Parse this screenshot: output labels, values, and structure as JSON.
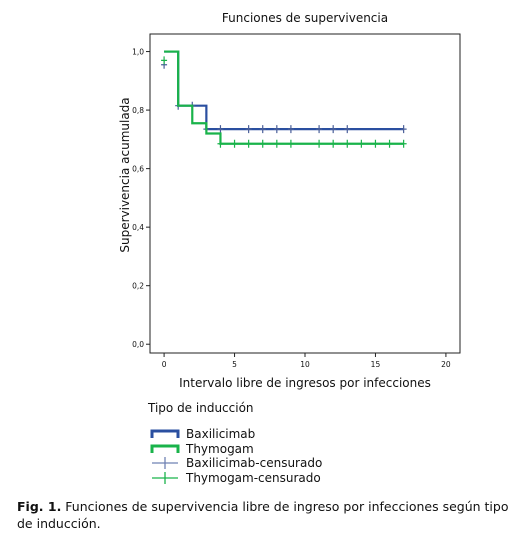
{
  "chart_data": {
    "type": "line",
    "title": "Funciones de supervivencia",
    "xlabel": "Intervalo libre de ingresos por infecciones",
    "ylabel": "Supervivencia acumulada",
    "xlim": [
      -1,
      21
    ],
    "ylim": [
      -0.03,
      1.06
    ],
    "xticks": [
      0,
      5,
      10,
      15,
      20
    ],
    "yticks": [
      0.0,
      0.2,
      0.4,
      0.6,
      0.8,
      1.0
    ],
    "xtick_labels": [
      "0",
      "5",
      "10",
      "15",
      "20"
    ],
    "ytick_labels": [
      "0,0",
      "0,2",
      "0,4",
      "0,6",
      "0,8",
      "1,0"
    ],
    "grid": false,
    "series": [
      {
        "name": "Baxilicimab",
        "color": "#2a4fa0",
        "steps": [
          [
            0,
            1.0
          ],
          [
            1,
            0.815
          ],
          [
            3,
            0.735
          ],
          [
            17,
            0.735
          ]
        ],
        "censored": [
          [
            0,
            0.955
          ],
          [
            1,
            0.815
          ],
          [
            2,
            0.815
          ],
          [
            3,
            0.735
          ],
          [
            4,
            0.735
          ],
          [
            6,
            0.735
          ],
          [
            7,
            0.735
          ],
          [
            8,
            0.735
          ],
          [
            9,
            0.735
          ],
          [
            11,
            0.735
          ],
          [
            12,
            0.735
          ],
          [
            13,
            0.735
          ],
          [
            17,
            0.735
          ]
        ]
      },
      {
        "name": "Thymogam",
        "color": "#19b34a",
        "steps": [
          [
            0,
            1.0
          ],
          [
            1,
            0.815
          ],
          [
            2,
            0.755
          ],
          [
            3,
            0.72
          ],
          [
            4,
            0.685
          ],
          [
            17,
            0.685
          ]
        ],
        "censored": [
          [
            0,
            0.97
          ],
          [
            4,
            0.685
          ],
          [
            5,
            0.685
          ],
          [
            6,
            0.685
          ],
          [
            7,
            0.685
          ],
          [
            8,
            0.685
          ],
          [
            9,
            0.685
          ],
          [
            11,
            0.685
          ],
          [
            12,
            0.685
          ],
          [
            13,
            0.685
          ],
          [
            14,
            0.685
          ],
          [
            15,
            0.685
          ],
          [
            16,
            0.685
          ],
          [
            17,
            0.685
          ]
        ]
      }
    ],
    "legend": {
      "title": "Tipo de inducción",
      "position": "bottom",
      "items": [
        {
          "label": "Baxilicimab",
          "kind": "line",
          "color": "#2a4fa0"
        },
        {
          "label": "Thymogam",
          "kind": "line",
          "color": "#19b34a"
        },
        {
          "label": "Baxilicimab-censurado",
          "kind": "censor",
          "color": "#6f82b3"
        },
        {
          "label": "Thymogam-censurado",
          "kind": "censor",
          "color": "#19b34a"
        }
      ]
    }
  },
  "caption": {
    "label": "Fig. 1.",
    "text": " Funciones de supervivencia libre de ingreso por infecciones según tipo de inducción."
  }
}
